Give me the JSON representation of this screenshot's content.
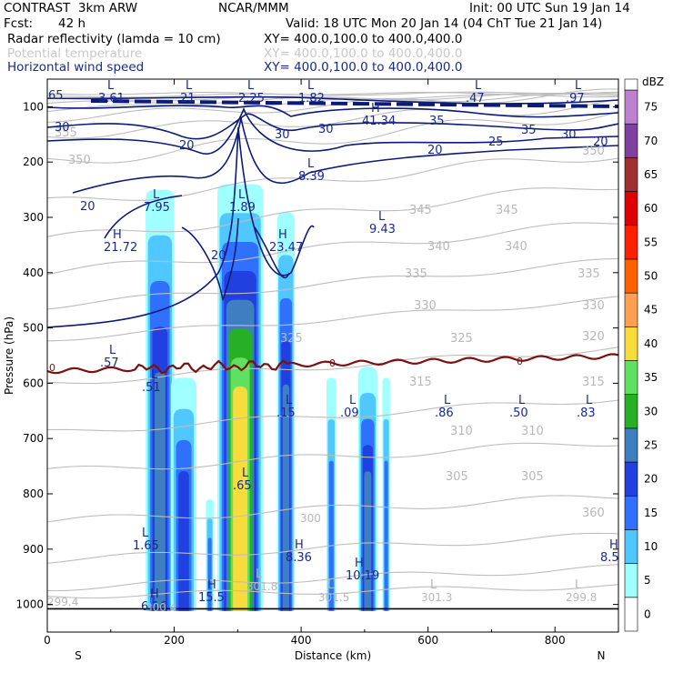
{
  "header": {
    "model": "CONTRAST  3km ARW",
    "center": "NCAR/MMM",
    "init": "Init: 00 UTC Sun 19 Jan 14",
    "fcst_label": "Fcst:",
    "fcst_value": "42 h",
    "valid": "Valid: 18 UTC Mon 20 Jan 14 (04 ChT Tue 21 Jan 14)"
  },
  "fields": [
    {
      "name": "Radar reflectivity (lamda = 10 cm)",
      "xy": "XY= 400.0,100.0 to 400.0,400.0",
      "color": "#000000"
    },
    {
      "name": "Potential temperature",
      "xy": "XY= 400.0,100.0 to 400.0,400.0",
      "color": "#c8c8c8"
    },
    {
      "name": "Horizontal wind speed",
      "xy": "XY= 400.0,100.0 to 400.0,400.0",
      "color": "#1a2a8c"
    }
  ],
  "chart_data": {
    "type": "heatmap",
    "xlabel": "Distance (km)",
    "ylabel": "Pressure (hPa)",
    "xlim": [
      0,
      900
    ],
    "ylim": [
      1050,
      50
    ],
    "x_ticks": [
      "0",
      "200",
      "400",
      "600",
      "800"
    ],
    "y_ticks": [
      "100",
      "200",
      "300",
      "400",
      "500",
      "600",
      "700",
      "800",
      "900",
      "1000"
    ],
    "x_ends": {
      "left": "S",
      "right": "N"
    },
    "colorbar": {
      "unit": "dBZ",
      "levels": [
        "0",
        "5",
        "10",
        "15",
        "20",
        "25",
        "30",
        "35",
        "40",
        "45",
        "50",
        "55",
        "60",
        "65",
        "70",
        "75"
      ],
      "colors": [
        "#ffffff",
        "#a0ffff",
        "#50c8ff",
        "#3070ff",
        "#2040e0",
        "#3d7fbf",
        "#26b026",
        "#60e060",
        "#f7dc3c",
        "#ffa050",
        "#ff6000",
        "#ff2000",
        "#e00000",
        "#a03030",
        "#8040a0",
        "#c080d0"
      ]
    },
    "reflectivity_columns": [
      {
        "x0": 155,
        "x1": 200,
        "ptop": 250,
        "core": 20
      },
      {
        "x0": 195,
        "x1": 235,
        "ptop": 590,
        "core": 15
      },
      {
        "x0": 250,
        "x1": 262,
        "ptop": 810,
        "core": 10
      },
      {
        "x0": 268,
        "x1": 340,
        "ptop": 240,
        "core": 35
      },
      {
        "x0": 362,
        "x1": 390,
        "ptop": 290,
        "core": 20
      },
      {
        "x0": 440,
        "x1": 455,
        "ptop": 590,
        "core": 10
      },
      {
        "x0": 490,
        "x1": 520,
        "ptop": 570,
        "core": 20
      },
      {
        "x0": 528,
        "x1": 540,
        "ptop": 590,
        "core": 10
      }
    ],
    "theta_contour_labels": [
      "355",
      "350",
      "350",
      "345",
      "345",
      "340",
      "340",
      "335",
      "335",
      "330",
      "330",
      "325",
      "325",
      "320",
      "315",
      "315",
      "310",
      "310",
      "305",
      "305",
      "360"
    ],
    "wind_contour_labels": [
      "65",
      "30",
      "20",
      "20",
      "30",
      "30",
      "35",
      "35",
      "25",
      "30",
      "20",
      "20",
      "20"
    ],
    "freezing_level_label": "0",
    "wind_extrema": [
      {
        "kind": "L",
        "value": "3.61"
      },
      {
        "kind": "L",
        "value": ".21"
      },
      {
        "kind": "L",
        "value": "2.25"
      },
      {
        "kind": "L",
        "value": "1.82"
      },
      {
        "kind": "L",
        "value": ".47"
      },
      {
        "kind": "L",
        "value": ".97"
      },
      {
        "kind": "H",
        "value": "41.34"
      },
      {
        "kind": "L",
        "value": "8.39"
      },
      {
        "kind": "L",
        "value": "7.95"
      },
      {
        "kind": "L",
        "value": "1.89"
      },
      {
        "kind": "H",
        "value": "21.72"
      },
      {
        "kind": "H",
        "value": "23.47"
      },
      {
        "kind": "L",
        "value": "9.43"
      },
      {
        "kind": "L",
        "value": ".57"
      },
      {
        "kind": "L",
        "value": ".51"
      },
      {
        "kind": "L",
        "value": ".15"
      },
      {
        "kind": "L",
        "value": ".09"
      },
      {
        "kind": "L",
        "value": ".86"
      },
      {
        "kind": "L",
        "value": ".50"
      },
      {
        "kind": "L",
        "value": ".83"
      },
      {
        "kind": "L",
        "value": ".65"
      },
      {
        "kind": "L",
        "value": "1.65"
      },
      {
        "kind": "H",
        "value": "8.36"
      },
      {
        "kind": "H",
        "value": "10.19"
      },
      {
        "kind": "H",
        "value": "8.5"
      },
      {
        "kind": "H",
        "value": "15.5"
      },
      {
        "kind": "H",
        "value": "6.16"
      }
    ],
    "theta_extrema": [
      {
        "kind": "L",
        "value": "301.5"
      },
      {
        "kind": "L",
        "value": "301.3"
      },
      {
        "kind": "L",
        "value": "299.8"
      },
      {
        "kind": "L",
        "value": "301.8"
      },
      {
        "kind": "L",
        "value": "300"
      },
      {
        "kind": "L",
        "value": "300.4"
      },
      {
        "kind": "L",
        "value": "299.4"
      }
    ]
  }
}
